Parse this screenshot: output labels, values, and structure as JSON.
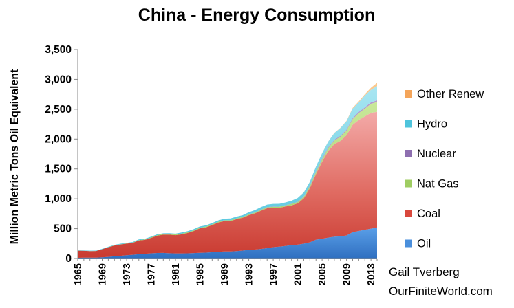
{
  "chart_data": {
    "type": "area",
    "stacked": true,
    "title": "China - Energy Consumption",
    "xlabel": "",
    "ylabel": "Million Metric Tons Oil Equivalent",
    "ylim": [
      0,
      3500
    ],
    "yticks": [
      0,
      500,
      1000,
      1500,
      2000,
      2500,
      3000,
      3500
    ],
    "ytick_labels": [
      "0",
      "500",
      "1,000",
      "1,500",
      "2,000",
      "2,500",
      "3,000",
      "3,500"
    ],
    "xticks": [
      1965,
      1969,
      1973,
      1977,
      1981,
      1985,
      1989,
      1993,
      1997,
      2001,
      2005,
      2009,
      2013
    ],
    "xtick_labels": [
      "1965",
      "1969",
      "1973",
      "1977",
      "1981",
      "1985",
      "1989",
      "1993",
      "1997",
      "2001",
      "2005",
      "2009",
      "2013"
    ],
    "grid": false,
    "legend_position": "right",
    "x": [
      1965,
      1966,
      1967,
      1968,
      1969,
      1970,
      1971,
      1972,
      1973,
      1974,
      1975,
      1976,
      1977,
      1978,
      1979,
      1980,
      1981,
      1982,
      1983,
      1984,
      1985,
      1986,
      1987,
      1988,
      1989,
      1990,
      1991,
      1992,
      1993,
      1994,
      1995,
      1996,
      1997,
      1998,
      1999,
      2000,
      2001,
      2002,
      2003,
      2004,
      2005,
      2006,
      2007,
      2008,
      2009,
      2010,
      2011,
      2012,
      2013,
      2014
    ],
    "series": [
      {
        "name": "Oil",
        "color": "#4a8fdc",
        "values": [
          11,
          14,
          14,
          15,
          20,
          28,
          38,
          45,
          54,
          62,
          72,
          78,
          86,
          92,
          93,
          88,
          85,
          85,
          87,
          90,
          95,
          98,
          105,
          112,
          118,
          118,
          124,
          133,
          145,
          150,
          160,
          172,
          190,
          198,
          210,
          225,
          232,
          248,
          270,
          315,
          330,
          350,
          365,
          370,
          385,
          440,
          460,
          480,
          500,
          520
        ]
      },
      {
        "name": "Coal",
        "color": "#d9483d",
        "values": [
          120,
          115,
          110,
          110,
          135,
          160,
          180,
          190,
          195,
          200,
          230,
          235,
          260,
          290,
          305,
          310,
          305,
          320,
          340,
          370,
          410,
          425,
          455,
          490,
          510,
          510,
          535,
          550,
          580,
          605,
          640,
          670,
          660,
          650,
          660,
          665,
          690,
          760,
          910,
          1100,
          1290,
          1450,
          1550,
          1600,
          1680,
          1800,
          1860,
          1900,
          1940,
          1935
        ]
      },
      {
        "name": "Nat Gas",
        "color": "#9fcd62",
        "values": [
          1,
          1,
          1,
          1,
          1,
          2,
          3,
          3,
          4,
          5,
          6,
          7,
          8,
          10,
          12,
          12,
          12,
          12,
          12,
          12,
          12,
          12,
          12,
          12,
          13,
          13,
          13,
          13,
          14,
          14,
          15,
          16,
          17,
          18,
          19,
          22,
          24,
          25,
          30,
          35,
          40,
          50,
          60,
          70,
          80,
          95,
          115,
          130,
          150,
          165
        ]
      },
      {
        "name": "Nuclear",
        "color": "#8e6fb0",
        "values": [
          0,
          0,
          0,
          0,
          0,
          0,
          0,
          0,
          0,
          0,
          0,
          0,
          0,
          0,
          0,
          0,
          0,
          0,
          0,
          0,
          0,
          0,
          0,
          0,
          0,
          0,
          0,
          0,
          1,
          3,
          3,
          3,
          3,
          3,
          3,
          4,
          4,
          6,
          10,
          11,
          12,
          12,
          14,
          15,
          15,
          16,
          19,
          22,
          25,
          28
        ]
      },
      {
        "name": "Hydro",
        "color": "#4ec4dc",
        "values": [
          5,
          5,
          6,
          6,
          7,
          7,
          8,
          9,
          9,
          10,
          11,
          11,
          11,
          12,
          12,
          13,
          14,
          17,
          18,
          20,
          20,
          21,
          22,
          24,
          26,
          29,
          29,
          30,
          34,
          38,
          42,
          42,
          44,
          46,
          47,
          51,
          63,
          66,
          65,
          80,
          90,
          95,
          110,
          130,
          140,
          160,
          160,
          200,
          210,
          240
        ]
      },
      {
        "name": "Other Renew",
        "color": "#f4a55a",
        "values": [
          0,
          0,
          0,
          0,
          0,
          0,
          0,
          0,
          0,
          0,
          0,
          0,
          0,
          0,
          0,
          0,
          0,
          0,
          0,
          0,
          0,
          0,
          0,
          0,
          0,
          0,
          0,
          0,
          0,
          0,
          0,
          0,
          0,
          0,
          0,
          0,
          0,
          1,
          1,
          1,
          2,
          2,
          3,
          4,
          6,
          10,
          15,
          20,
          35,
          55
        ]
      }
    ]
  },
  "legend": [
    {
      "label": "Other Renew",
      "color": "#f4a55a"
    },
    {
      "label": "Hydro",
      "color": "#4ec4dc"
    },
    {
      "label": "Nuclear",
      "color": "#8e6fb0"
    },
    {
      "label": "Nat Gas",
      "color": "#9fcd62"
    },
    {
      "label": "Coal",
      "color": "#d9483d"
    },
    {
      "label": "Oil",
      "color": "#4a8fdc"
    }
  ],
  "credit": {
    "line1": "Gail Tverberg",
    "line2": "OurFiniteWorld.com"
  }
}
